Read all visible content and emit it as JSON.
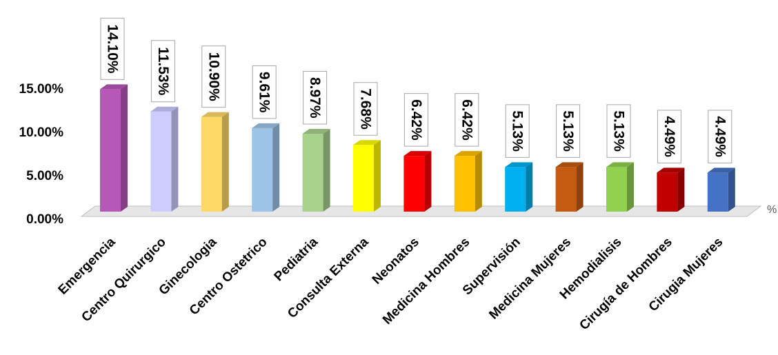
{
  "chart_data": {
    "type": "bar",
    "style": "3d-column",
    "categories": [
      "Emergencia",
      "Centro Quirurgico",
      "Ginecologia",
      "Centro Ostetrico",
      "Pediatria",
      "Consulta Externa",
      "Neonatos",
      "Medicina Hombres",
      "Supervisión",
      "Medicina Mujeres",
      "Hemodialisis",
      "Cirugía de Hombres",
      "Cirugia Mujeres"
    ],
    "values": [
      14.1,
      11.53,
      10.9,
      9.61,
      8.97,
      7.68,
      6.42,
      6.42,
      5.13,
      5.13,
      5.13,
      4.49,
      4.49
    ],
    "data_labels": [
      "14.10%",
      "11.53%",
      "10.90%",
      "9.61%",
      "8.97%",
      "7.68%",
      "6.42%",
      "6.42%",
      "5.13%",
      "5.13%",
      "5.13%",
      "4.49%",
      "4.49%"
    ],
    "colors": [
      "#b757b7",
      "#ccccff",
      "#ffd966",
      "#9dc3e6",
      "#a9d18e",
      "#ffff00",
      "#ff0000",
      "#ffc000",
      "#00b0f0",
      "#c55a11",
      "#92d050",
      "#c00000",
      "#4472c4"
    ],
    "yticks": [
      "0.00%",
      "5.00%",
      "10.00%",
      "15.00%"
    ],
    "ytick_values": [
      0,
      5,
      10,
      15
    ],
    "ylim": [
      0,
      15
    ],
    "axis_unit": "%",
    "title": "",
    "xlabel": "",
    "ylabel": "",
    "grid": false,
    "legend": "none"
  }
}
